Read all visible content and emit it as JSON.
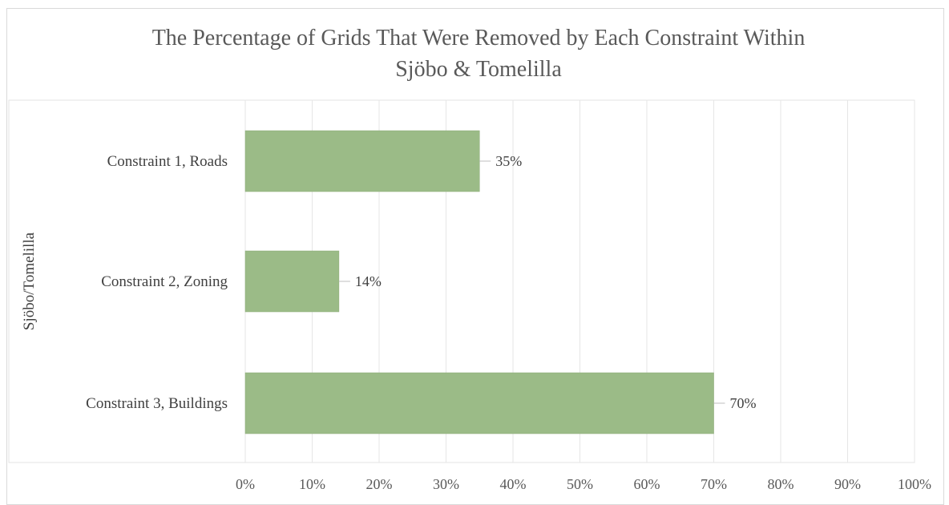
{
  "chart_data": {
    "type": "bar",
    "orientation": "horizontal",
    "title_lines": [
      "The Percentage of  Grids That Were Removed by Each Constraint Within",
      "Sjöbo & Tomelilla"
    ],
    "ylabel": "Sjöbo/Tomelilla",
    "xlabel": "",
    "categories": [
      "Constraint 1, Roads",
      "Constraint 2, Zoning",
      "Constraint 3, Buildings"
    ],
    "values": [
      35,
      14,
      70
    ],
    "data_labels": [
      "35%",
      "14%",
      "70%"
    ],
    "x_ticks": [
      0,
      10,
      20,
      30,
      40,
      50,
      60,
      70,
      80,
      90,
      100
    ],
    "x_tick_labels": [
      "0%",
      "10%",
      "20%",
      "30%",
      "40%",
      "50%",
      "60%",
      "70%",
      "80%",
      "90%",
      "100%"
    ],
    "xlim": [
      0,
      100
    ],
    "grid": true,
    "legend": "none",
    "colors": {
      "bar": "#9bbb87",
      "bar_edge": "#8aaa76",
      "grid": "#e6e6e6",
      "leader": "#bfbfbf"
    }
  }
}
